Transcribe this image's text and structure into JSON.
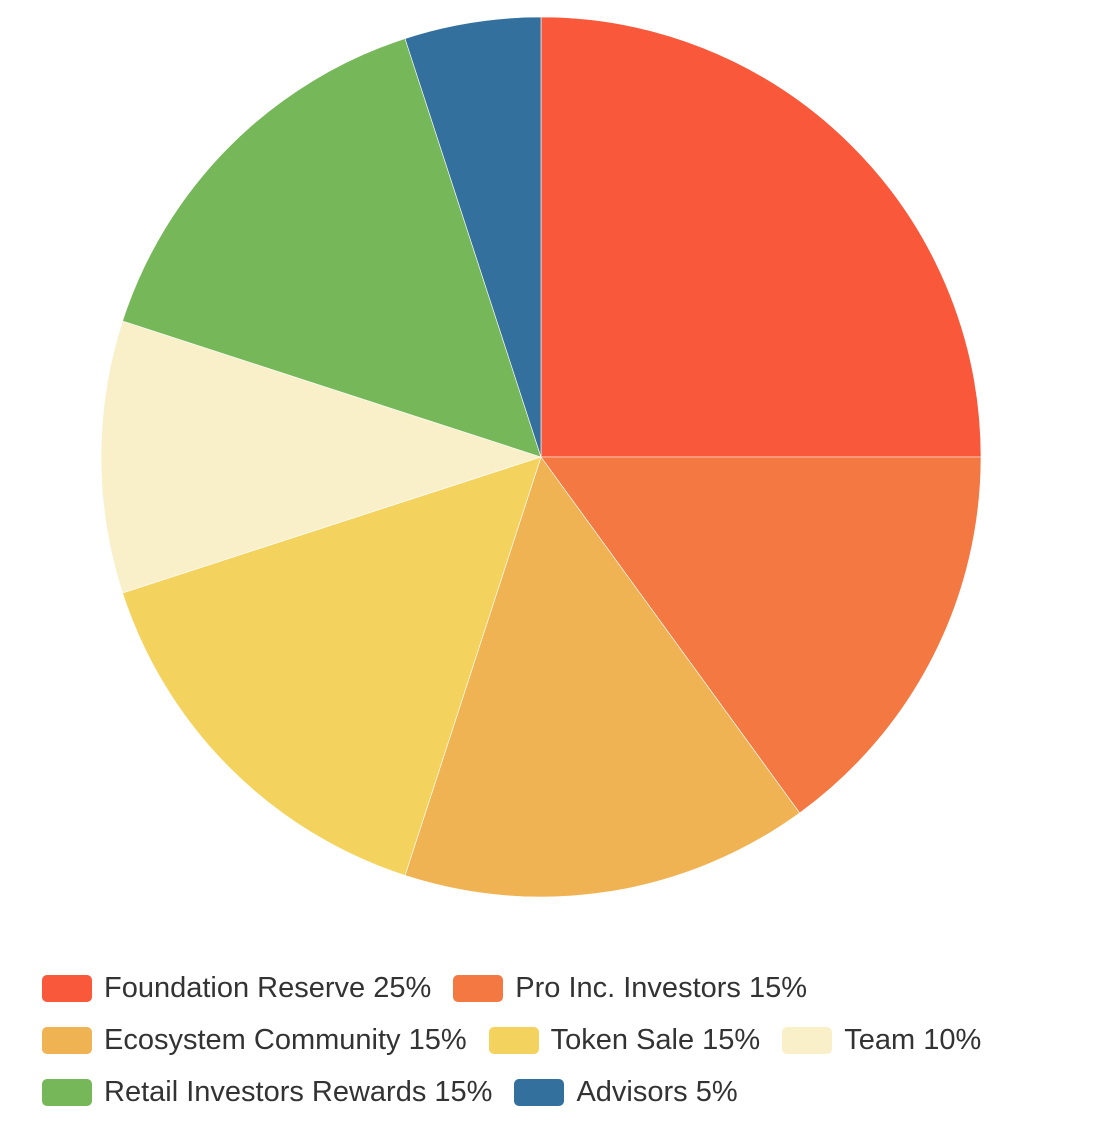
{
  "chart_data": {
    "type": "pie",
    "title": "",
    "legend_position": "bottom",
    "slices": [
      {
        "label": "Foundation Reserve 25%",
        "value": 25,
        "color": "#F9583A"
      },
      {
        "label": "Pro Inc. Investors 15%",
        "value": 15,
        "color": "#F47842"
      },
      {
        "label": "Ecosystem Community 15%",
        "value": 15,
        "color": "#F0B354"
      },
      {
        "label": "Token Sale 15%",
        "value": 15,
        "color": "#F3D35E"
      },
      {
        "label": "Team 10%",
        "value": 10,
        "color": "#F9F0CA"
      },
      {
        "label": "Retail Investors Rewards 15%",
        "value": 15,
        "color": "#76B859"
      },
      {
        "label": "Advisors 5%",
        "value": 5,
        "color": "#33709E"
      }
    ]
  }
}
